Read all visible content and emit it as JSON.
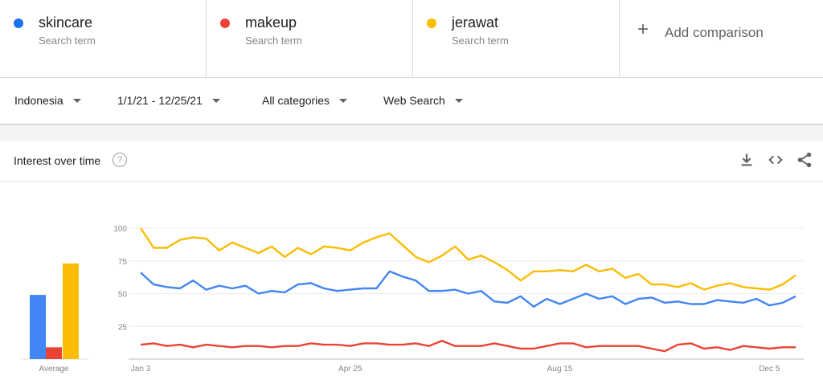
{
  "terms": [
    {
      "name": "skincare",
      "sub": "Search term",
      "color": "#4285f4"
    },
    {
      "name": "makeup",
      "sub": "Search term",
      "color": "#ea4335"
    },
    {
      "name": "jerawat",
      "sub": "Search term",
      "color": "#fbbc04"
    }
  ],
  "add_comparison": {
    "icon": "plus-icon",
    "label": "Add comparison"
  },
  "filters": {
    "region": "Indonesia",
    "date_range": "1/1/21 - 12/25/21",
    "category": "All categories",
    "search_type": "Web Search"
  },
  "card": {
    "title": "Interest over time",
    "help": "?",
    "tools": [
      "download-icon",
      "embed-icon",
      "share-icon"
    ]
  },
  "chart_data": [
    {
      "type": "bar",
      "xlabel": "Average",
      "categories": [
        "skincare",
        "makeup",
        "jerawat"
      ],
      "values": [
        49,
        9,
        73
      ],
      "colors": [
        "#4285f4",
        "#ea4335",
        "#fbbc04"
      ],
      "ylim": [
        0,
        100
      ]
    },
    {
      "type": "line",
      "yticks": [
        25,
        50,
        75,
        100
      ],
      "ylim": [
        0,
        100
      ],
      "xticks": [
        "Jan 3",
        "Apr 25",
        "Aug 15",
        "Dec 5"
      ],
      "xtick_index": [
        0,
        16,
        32,
        48
      ],
      "grid": true,
      "series": [
        {
          "name": "jerawat",
          "color": "#fbbc04",
          "values": [
            100,
            85,
            85,
            91,
            93,
            92,
            83,
            89,
            85,
            81,
            86,
            78,
            85,
            80,
            86,
            85,
            83,
            89,
            93,
            96,
            87,
            78,
            74,
            79,
            86,
            76,
            79,
            74,
            68,
            60,
            67,
            67,
            68,
            67,
            72,
            67,
            69,
            62,
            65,
            57,
            57,
            55,
            58,
            53,
            56,
            58,
            55,
            54,
            53,
            57,
            64
          ]
        },
        {
          "name": "skincare",
          "color": "#4285f4",
          "values": [
            66,
            57,
            55,
            54,
            60,
            53,
            56,
            54,
            56,
            50,
            52,
            51,
            57,
            58,
            54,
            52,
            53,
            54,
            54,
            67,
            63,
            60,
            52,
            52,
            53,
            50,
            52,
            44,
            43,
            48,
            40,
            46,
            42,
            46,
            50,
            46,
            48,
            42,
            46,
            47,
            43,
            44,
            42,
            42,
            45,
            44,
            43,
            46,
            41,
            43,
            48
          ]
        },
        {
          "name": "makeup",
          "color": "#ea4335",
          "values": [
            11,
            12,
            10,
            11,
            9,
            11,
            10,
            9,
            10,
            10,
            9,
            10,
            10,
            12,
            11,
            11,
            10,
            12,
            12,
            11,
            11,
            12,
            10,
            14,
            10,
            10,
            10,
            12,
            10,
            8,
            8,
            10,
            12,
            12,
            9,
            10,
            10,
            10,
            10,
            8,
            6,
            11,
            12,
            8,
            9,
            7,
            10,
            9,
            8,
            9,
            9
          ]
        }
      ]
    }
  ]
}
